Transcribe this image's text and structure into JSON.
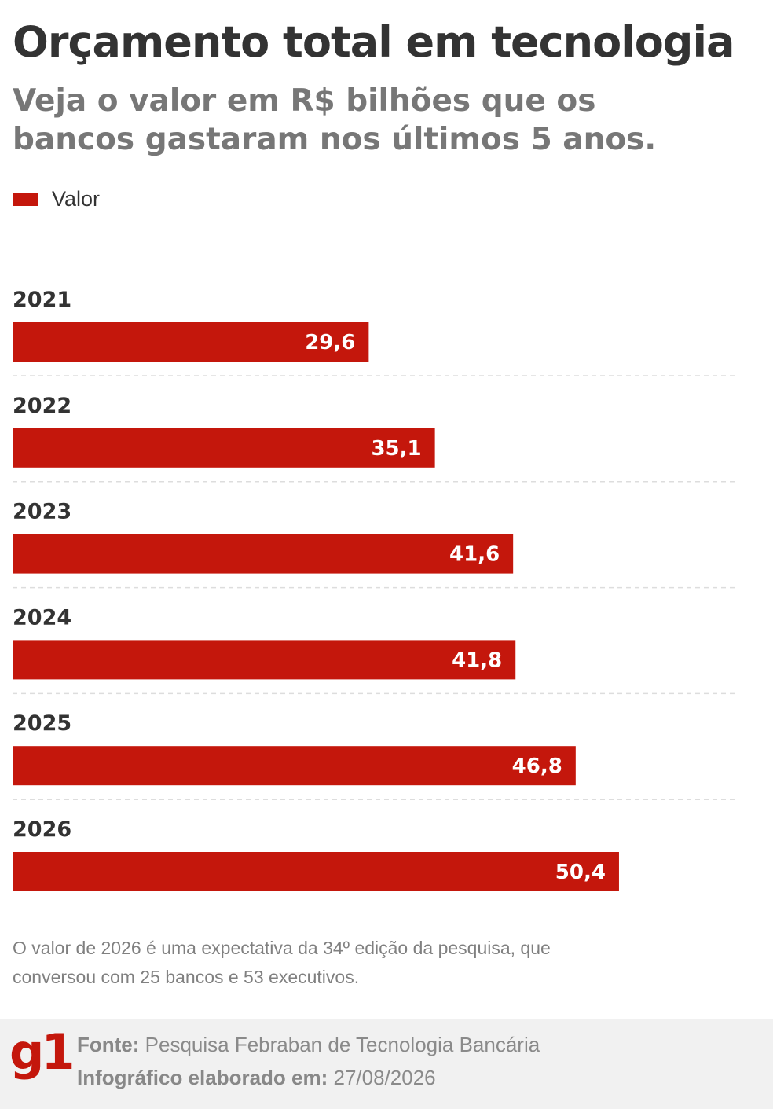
{
  "title": "Orçamento total em tecnologia",
  "subtitle": "Veja o valor em R$ bilhões que os bancos gastaram nos últimos 5 anos.",
  "colors": {
    "bar": "#c4170c",
    "value_label": "#ffffff",
    "category_label": "#333333",
    "grid": "#dddddd"
  },
  "chart_data": {
    "type": "bar",
    "orientation": "horizontal",
    "categories": [
      "2021",
      "2022",
      "2023",
      "2024",
      "2025",
      "2026"
    ],
    "series": [
      {
        "name": "Valor",
        "values": [
          29.6,
          35.1,
          41.6,
          41.8,
          46.8,
          50.4
        ]
      }
    ],
    "value_labels": [
      "29,6",
      "35,1",
      "41,6",
      "41,8",
      "46,8",
      "50,4"
    ],
    "xlim": [
      0,
      60
    ],
    "grid": "dashed separators between rows",
    "legend": "top-left"
  },
  "note": "O valor de 2026 é uma expectativa da 34º edição da pesquisa, que conversou com 25 bancos e 53 executivos.",
  "footer": {
    "logo": "g1",
    "logo_icon": "g1-logo-icon",
    "source_label": "Fonte:",
    "source_text": "Pesquisa Febraban de Tecnologia Bancária",
    "date_label": "Infográfico elaborado em:",
    "date_text": "27/08/2026"
  }
}
